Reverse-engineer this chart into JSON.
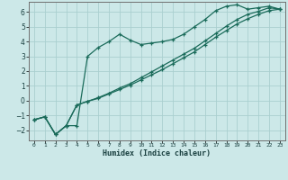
{
  "xlabel": "Humidex (Indice chaleur)",
  "background_color": "#cce8e8",
  "grid_color": "#aacfcf",
  "line_color": "#1a6b5a",
  "xlim": [
    -0.5,
    23.5
  ],
  "ylim": [
    -2.7,
    6.7
  ],
  "yticks": [
    -2,
    -1,
    0,
    1,
    2,
    3,
    4,
    5,
    6
  ],
  "xticks": [
    0,
    1,
    2,
    3,
    4,
    5,
    6,
    7,
    8,
    9,
    10,
    11,
    12,
    13,
    14,
    15,
    16,
    17,
    18,
    19,
    20,
    21,
    22,
    23
  ],
  "line1_x": [
    0,
    1,
    2,
    3,
    4,
    5,
    6,
    7,
    8,
    9,
    10,
    11,
    12,
    13,
    14,
    15,
    16,
    17,
    18,
    19,
    20,
    21,
    22,
    23
  ],
  "line1_y": [
    -1.3,
    -1.1,
    -2.3,
    -1.7,
    -1.7,
    3.0,
    3.6,
    4.0,
    4.5,
    4.1,
    3.8,
    3.9,
    4.0,
    4.15,
    4.5,
    5.0,
    5.5,
    6.1,
    6.4,
    6.5,
    6.2,
    6.3,
    6.4,
    6.2
  ],
  "line2_x": [
    0,
    1,
    2,
    3,
    4,
    5,
    6,
    7,
    8,
    9,
    10,
    11,
    12,
    13,
    14,
    15,
    16,
    17,
    18,
    19,
    20,
    21,
    22,
    23
  ],
  "line2_y": [
    -1.3,
    -1.1,
    -2.3,
    -1.7,
    -0.3,
    -0.05,
    0.15,
    0.45,
    0.75,
    1.05,
    1.4,
    1.75,
    2.1,
    2.5,
    2.9,
    3.3,
    3.8,
    4.3,
    4.75,
    5.2,
    5.55,
    5.85,
    6.1,
    6.2
  ],
  "line3_x": [
    0,
    1,
    2,
    3,
    4,
    5,
    6,
    7,
    8,
    9,
    10,
    11,
    12,
    13,
    14,
    15,
    16,
    17,
    18,
    19,
    20,
    21,
    22,
    23
  ],
  "line3_y": [
    -1.3,
    -1.1,
    -2.3,
    -1.7,
    -0.3,
    -0.05,
    0.2,
    0.5,
    0.85,
    1.15,
    1.55,
    1.95,
    2.35,
    2.75,
    3.15,
    3.55,
    4.05,
    4.55,
    5.05,
    5.5,
    5.85,
    6.05,
    6.3,
    6.2
  ]
}
